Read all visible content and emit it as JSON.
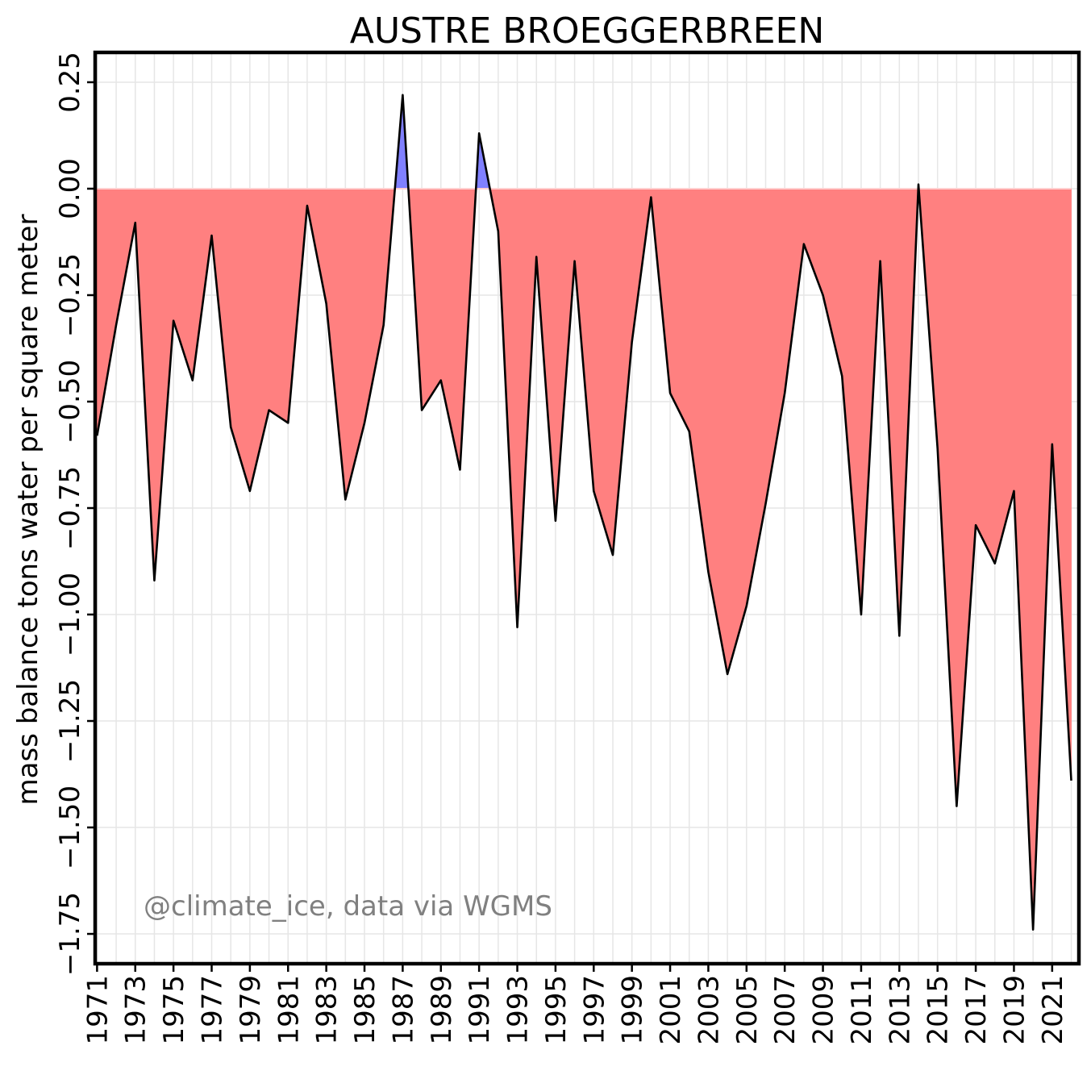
{
  "chart_data": {
    "type": "area",
    "title": "AUSTRE BROEGGERBREEN",
    "xlabel": "",
    "ylabel": "mass balance tons water per square meter",
    "annotation": "@climate_ice, data via WGMS",
    "xlim": [
      1970.9,
      2022.4
    ],
    "ylim": [
      -1.82,
      0.32
    ],
    "yticks": [
      -1.75,
      -1.5,
      -1.25,
      -1.0,
      -0.75,
      -0.5,
      -0.25,
      0.0,
      0.25
    ],
    "ytick_labels": [
      "−1.75",
      "−1.50",
      "−1.25",
      "−1.00",
      "−0.75",
      "−0.50",
      "−0.25",
      "0.00",
      "0.25"
    ],
    "xticks": [
      1971,
      1973,
      1975,
      1977,
      1979,
      1981,
      1983,
      1985,
      1987,
      1989,
      1991,
      1993,
      1995,
      1997,
      1999,
      2001,
      2003,
      2005,
      2007,
      2009,
      2011,
      2013,
      2015,
      2017,
      2019,
      2021
    ],
    "xtick_labels": [
      "1971",
      "1973",
      "1975",
      "1977",
      "1979",
      "1981",
      "1983",
      "1985",
      "1987",
      "1989",
      "1991",
      "1993",
      "1995",
      "1997",
      "1999",
      "2001",
      "2003",
      "2005",
      "2007",
      "2009",
      "2011",
      "2013",
      "2015",
      "2017",
      "2019",
      "2021"
    ],
    "grid": true,
    "colors": {
      "positive": "#8080ff",
      "negative": "#ff8080",
      "line": "#000000",
      "grid": "#e6e6e6",
      "annotation": "#808080"
    },
    "x": [
      1971,
      1972,
      1973,
      1974,
      1975,
      1976,
      1977,
      1978,
      1979,
      1980,
      1981,
      1982,
      1983,
      1984,
      1985,
      1986,
      1987,
      1988,
      1989,
      1990,
      1991,
      1992,
      1993,
      1994,
      1995,
      1996,
      1997,
      1998,
      1999,
      2000,
      2001,
      2002,
      2003,
      2004,
      2005,
      2006,
      2007,
      2008,
      2009,
      2010,
      2011,
      2012,
      2013,
      2014,
      2015,
      2016,
      2017,
      2018,
      2019,
      2020,
      2021,
      2022
    ],
    "values": [
      -0.58,
      -0.32,
      -0.08,
      -0.92,
      -0.31,
      -0.45,
      -0.11,
      -0.56,
      -0.71,
      -0.52,
      -0.55,
      -0.04,
      -0.27,
      -0.73,
      -0.55,
      -0.32,
      0.22,
      -0.52,
      -0.45,
      -0.66,
      0.13,
      -0.1,
      -1.03,
      -0.16,
      -0.78,
      -0.17,
      -0.71,
      -0.86,
      -0.36,
      -0.02,
      -0.48,
      -0.57,
      -0.9,
      -1.14,
      -0.98,
      -0.74,
      -0.48,
      -0.13,
      -0.25,
      -0.44,
      -1.0,
      -0.17,
      -1.05,
      0.01,
      -0.61,
      -1.45,
      -0.79,
      -0.88,
      -0.71,
      -1.74,
      -0.6,
      -1.39
    ]
  }
}
